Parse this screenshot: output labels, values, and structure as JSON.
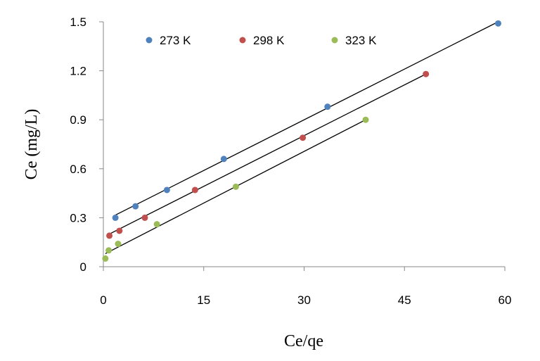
{
  "chart_data": {
    "type": "scatter",
    "xlabel": "Ce/qe",
    "ylabel": "Ce (mg/L)",
    "xlim": [
      0,
      60
    ],
    "ylim": [
      0,
      1.5
    ],
    "xticks": [
      "0",
      "15",
      "30",
      "45",
      "60"
    ],
    "yticks": [
      "0",
      "0.3",
      "0.6",
      "0.9",
      "1.2",
      "1.5"
    ],
    "grid": false,
    "legend_position": "top",
    "series": [
      {
        "name": "273 K",
        "color": "#4f81bd",
        "points": [
          [
            1.8,
            0.3
          ],
          [
            4.8,
            0.37
          ],
          [
            9.5,
            0.47
          ],
          [
            18.0,
            0.66
          ],
          [
            33.5,
            0.98
          ],
          [
            59.0,
            1.49
          ]
        ],
        "trendline": [
          [
            1.5,
            0.31
          ],
          [
            59.0,
            1.5
          ]
        ]
      },
      {
        "name": "298 K",
        "color": "#c0504d",
        "points": [
          [
            0.9,
            0.19
          ],
          [
            2.4,
            0.22
          ],
          [
            6.2,
            0.3
          ],
          [
            13.7,
            0.47
          ],
          [
            29.8,
            0.79
          ],
          [
            48.2,
            1.18
          ]
        ],
        "trendline": [
          [
            0.9,
            0.2
          ],
          [
            48.2,
            1.18
          ]
        ]
      },
      {
        "name": "323 K",
        "color": "#9bbb59",
        "points": [
          [
            0.3,
            0.05
          ],
          [
            0.8,
            0.1
          ],
          [
            2.2,
            0.14
          ],
          [
            8.0,
            0.26
          ],
          [
            19.8,
            0.49
          ],
          [
            39.2,
            0.9
          ]
        ],
        "trendline": [
          [
            0.3,
            0.08
          ],
          [
            39.2,
            0.9
          ]
        ]
      }
    ]
  }
}
